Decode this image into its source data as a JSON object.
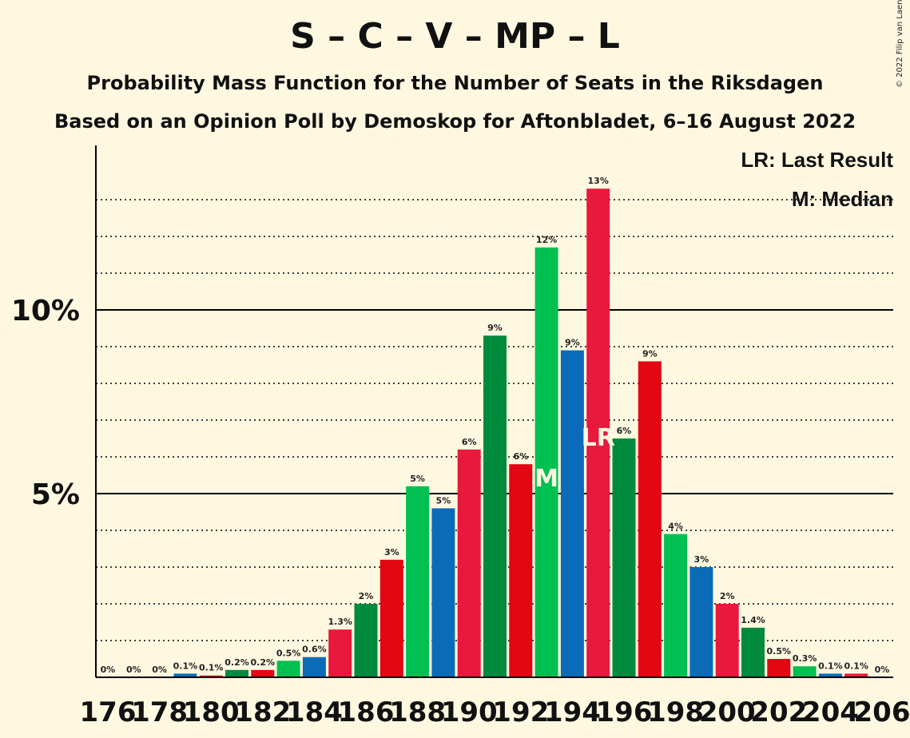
{
  "chart_data": {
    "type": "bar",
    "title": "S – C – V – MP – L",
    "subtitle": "Probability Mass Function for the Number of Seats in the Riksdagen",
    "subtitle2": "Based on an Opinion Poll by Demoskop for Aftonbladet, 6–16 August 2022",
    "copyright": "© 2022 Filip van Laenen",
    "legend": {
      "last_result": "LR: Last Result",
      "median": "M: Median",
      "placement": "top-right"
    },
    "x_tick_labels": [
      "176",
      "178",
      "180",
      "182",
      "184",
      "186",
      "188",
      "190",
      "192",
      "194",
      "196",
      "198",
      "200",
      "202",
      "204",
      "206"
    ],
    "y_tick_labels": [
      "5%",
      "10%"
    ],
    "ylim": [
      0,
      14.5
    ],
    "gridlines": "dotted every 1%, solid at 5% and 10%",
    "markers": {
      "median_seat": 193,
      "median_label": "M",
      "last_result_seat": 195,
      "last_result_label": "LR"
    },
    "bars": [
      {
        "seat": 176,
        "value": 0,
        "label": "0%",
        "color": "#00c052"
      },
      {
        "seat": 177,
        "value": 0,
        "label": "0%",
        "color": "#008a3e"
      },
      {
        "seat": 178,
        "value": 0,
        "label": "0%",
        "color": "#0a6cb8"
      },
      {
        "seat": 179,
        "value": 0.1,
        "label": "0.1%",
        "color": "#0a6cb8"
      },
      {
        "seat": 180,
        "value": 0.05,
        "label": "0.1%",
        "color": "#e8193c"
      },
      {
        "seat": 181,
        "value": 0.2,
        "label": "0.2%",
        "color": "#008a3e"
      },
      {
        "seat": 182,
        "value": 0.2,
        "label": "0.2%",
        "color": "#e30613"
      },
      {
        "seat": 183,
        "value": 0.45,
        "label": "0.5%",
        "color": "#00c052"
      },
      {
        "seat": 184,
        "value": 0.55,
        "label": "0.6%",
        "color": "#0a6cb8"
      },
      {
        "seat": 185,
        "value": 1.3,
        "label": "1.3%",
        "color": "#e8193c"
      },
      {
        "seat": 186,
        "value": 2.0,
        "label": "2%",
        "color": "#008a3e"
      },
      {
        "seat": 187,
        "value": 3.2,
        "label": "3%",
        "color": "#e30613"
      },
      {
        "seat": 188,
        "value": 5.2,
        "label": "5%",
        "color": "#00c052"
      },
      {
        "seat": 189,
        "value": 4.6,
        "label": "5%",
        "color": "#0a6cb8"
      },
      {
        "seat": 190,
        "value": 6.2,
        "label": "6%",
        "color": "#e8193c"
      },
      {
        "seat": 191,
        "value": 9.3,
        "label": "9%",
        "color": "#008a3e"
      },
      {
        "seat": 192,
        "value": 5.8,
        "label": "6%",
        "color": "#e30613"
      },
      {
        "seat": 193,
        "value": 11.7,
        "label": "12%",
        "color": "#00c052"
      },
      {
        "seat": 194,
        "value": 8.9,
        "label": "9%",
        "color": "#0a6cb8"
      },
      {
        "seat": 195,
        "value": 13.3,
        "label": "13%",
        "color": "#e8193c"
      },
      {
        "seat": 196,
        "value": 6.5,
        "label": "6%",
        "color": "#008a3e"
      },
      {
        "seat": 197,
        "value": 8.6,
        "label": "9%",
        "color": "#e30613"
      },
      {
        "seat": 198,
        "value": 3.9,
        "label": "4%",
        "color": "#00c052"
      },
      {
        "seat": 199,
        "value": 3.0,
        "label": "3%",
        "color": "#0a6cb8"
      },
      {
        "seat": 200,
        "value": 2.0,
        "label": "2%",
        "color": "#e8193c"
      },
      {
        "seat": 201,
        "value": 1.35,
        "label": "1.4%",
        "color": "#008a3e"
      },
      {
        "seat": 202,
        "value": 0.5,
        "label": "0.5%",
        "color": "#e30613"
      },
      {
        "seat": 203,
        "value": 0.3,
        "label": "0.3%",
        "color": "#00c052"
      },
      {
        "seat": 204,
        "value": 0.1,
        "label": "0.1%",
        "color": "#0a6cb8"
      },
      {
        "seat": 205,
        "value": 0.1,
        "label": "0.1%",
        "color": "#e8193c"
      },
      {
        "seat": 206,
        "value": 0,
        "label": "0%",
        "color": "#008a3e"
      }
    ]
  }
}
